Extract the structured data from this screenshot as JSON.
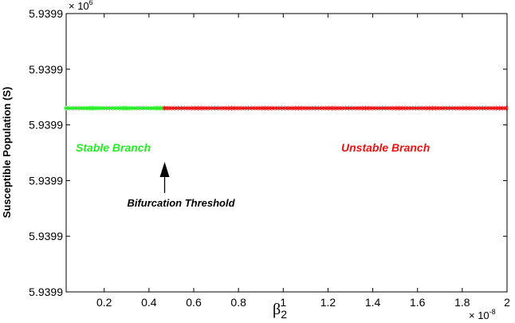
{
  "chart_data": {
    "type": "scatter",
    "title": "",
    "ylabel": "Susceptible Population (S)",
    "xlabel_base": "β",
    "xlabel_sub": "2",
    "x_multiplier": "× 10",
    "x_multiplier_exp": "-8",
    "y_multiplier": "× 10",
    "y_multiplier_exp": "6",
    "xlim": [
      0.03,
      2.0
    ],
    "x_ticks": [
      0.2,
      0.4,
      0.6,
      0.8,
      1.0,
      1.2,
      1.4,
      1.6,
      1.8,
      2.0
    ],
    "x_tick_labels": [
      "0.2",
      "0.4",
      "0.6",
      "0.8",
      "1",
      "1.2",
      "1.4",
      "1.6",
      "1.8",
      "2"
    ],
    "y_tick_labels": [
      "5.9399",
      "5.9399",
      "5.9399",
      "5.9399",
      "5.9399",
      "5.9399"
    ],
    "grid": false,
    "series": [
      {
        "name": "Stable Branch",
        "color": "#22ee22",
        "x_start": 0.03,
        "x_end": 0.47,
        "y_frac": 0.34
      },
      {
        "name": "Unstable Branch",
        "color": "#ee1111",
        "x_start": 0.47,
        "x_end": 2.0,
        "y_frac": 0.34
      }
    ],
    "annotations": [
      {
        "text": "Bifurcation Threshold",
        "x": 0.47
      }
    ]
  }
}
